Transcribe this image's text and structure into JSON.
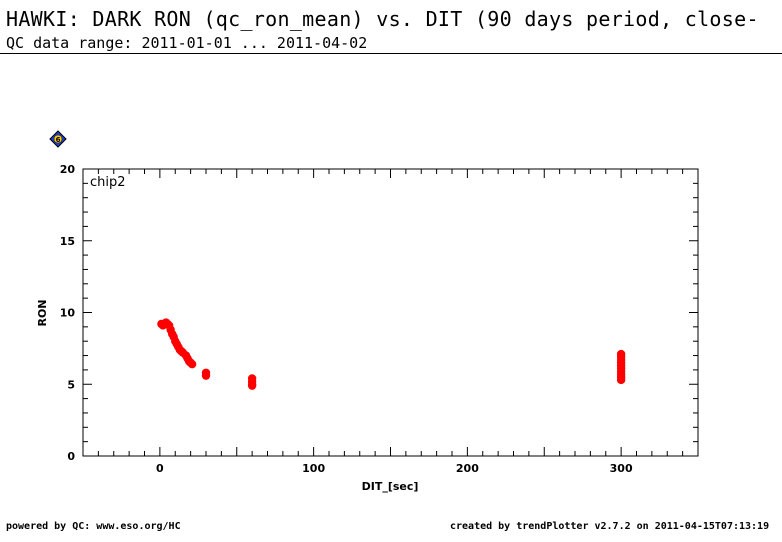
{
  "header": {
    "title": "HAWKI: DARK RON (qc_ron_mean) vs. DIT (90 days period, close-",
    "subtitle": "QC data range: 2011-01-01 ... 2011-04-02"
  },
  "badge": {
    "label": "6",
    "color": "#1f3fd6"
  },
  "footer": {
    "left": "powered by QC: www.eso.org/HC",
    "right": "created by trendPlotter v2.7.2 on 2011-04-15T07:13:19"
  },
  "chart_data": {
    "type": "scatter",
    "panel_label": "chip2",
    "xlabel": "DIT_[sec]",
    "ylabel": "RON",
    "xlim": [
      -50,
      350
    ],
    "ylim": [
      0,
      20
    ],
    "xticks": [
      0,
      100,
      200,
      300
    ],
    "yticks": [
      0,
      5,
      10,
      15,
      20
    ],
    "marker_color": "#ff0000",
    "series": [
      {
        "points": [
          [
            1,
            9.2
          ],
          [
            2,
            9.1
          ],
          [
            3,
            9.2
          ],
          [
            4,
            9.3
          ],
          [
            5,
            9.2
          ],
          [
            6,
            9.1
          ],
          [
            7,
            8.8
          ],
          [
            8,
            8.5
          ],
          [
            9,
            8.3
          ],
          [
            10,
            8.0
          ],
          [
            11,
            7.8
          ],
          [
            12,
            7.6
          ],
          [
            13,
            7.4
          ],
          [
            14,
            7.3
          ],
          [
            15,
            7.2
          ],
          [
            17,
            7.0
          ],
          [
            18,
            6.8
          ],
          [
            19,
            6.6
          ],
          [
            20,
            6.5
          ],
          [
            21,
            6.4
          ],
          [
            30,
            5.8
          ],
          [
            30,
            5.6
          ],
          [
            60,
            5.4
          ],
          [
            60,
            5.2
          ],
          [
            60,
            5.0
          ],
          [
            60,
            4.9
          ],
          [
            300,
            7.1
          ],
          [
            300,
            6.9
          ],
          [
            300,
            6.7
          ],
          [
            300,
            6.5
          ],
          [
            300,
            6.3
          ],
          [
            300,
            6.1
          ],
          [
            300,
            5.9
          ],
          [
            300,
            5.7
          ],
          [
            300,
            5.5
          ],
          [
            300,
            5.3
          ]
        ]
      }
    ]
  }
}
